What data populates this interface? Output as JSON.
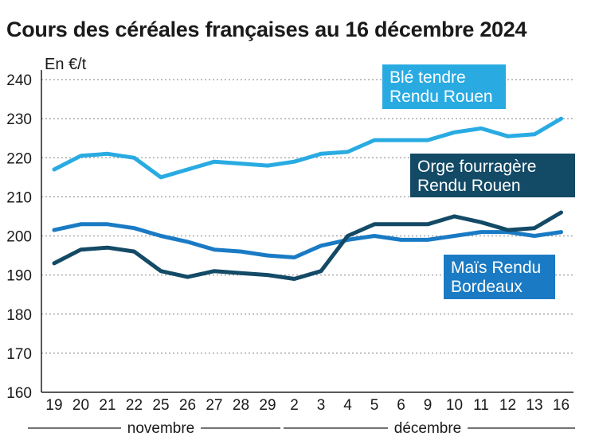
{
  "title": "Cours des céréales françaises au 16 décembre 2024",
  "unit_label": "En €/t",
  "colors": {
    "ble": "#29abe2",
    "mais": "#1a7bc4",
    "orge": "#134a66",
    "grid": "#9a9a9a",
    "axis": "#222222"
  },
  "chart_data": {
    "type": "line",
    "title": "Cours des céréales françaises au 16 décembre 2024",
    "ylabel": "En €/t",
    "xlabel": "",
    "ylim": [
      160,
      240
    ],
    "yticks": [
      160,
      170,
      180,
      190,
      200,
      210,
      220,
      230,
      240
    ],
    "grid": true,
    "categories": [
      "19",
      "20",
      "21",
      "22",
      "25",
      "26",
      "27",
      "28",
      "29",
      "2",
      "3",
      "4",
      "5",
      "6",
      "9",
      "10",
      "11",
      "12",
      "13",
      "16"
    ],
    "months": [
      {
        "name": "novembre",
        "start": 0,
        "end": 8
      },
      {
        "name": "décembre",
        "start": 9,
        "end": 19
      }
    ],
    "series": [
      {
        "name": "Blé tendre Rendu Rouen",
        "label_lines": [
          "Blé tendre",
          "Rendu Rouen"
        ],
        "color": "#29abe2",
        "values": [
          217,
          220.5,
          221,
          220,
          215,
          217,
          219,
          218.5,
          218,
          219,
          221,
          221.5,
          224.5,
          224.5,
          224.5,
          226.5,
          227.5,
          225.5,
          226,
          230
        ]
      },
      {
        "name": "Orge fourragère Rendu Rouen",
        "label_lines": [
          "Orge fourragère",
          "Rendu Rouen"
        ],
        "color": "#134a66",
        "values": [
          193,
          196.5,
          197,
          196,
          191,
          189.5,
          191,
          190.5,
          190,
          189,
          191,
          200,
          203,
          203,
          203,
          205,
          203.5,
          201.5,
          202,
          206
        ]
      },
      {
        "name": "Maïs Rendu Bordeaux",
        "label_lines": [
          "Maïs Rendu",
          "Bordeaux"
        ],
        "color": "#1a7bc4",
        "values": [
          201.5,
          203,
          203,
          202,
          200,
          198.5,
          196.5,
          196,
          195,
          194.5,
          197.5,
          199,
          200,
          199,
          199,
          200,
          201,
          201,
          200,
          201
        ]
      }
    ]
  }
}
